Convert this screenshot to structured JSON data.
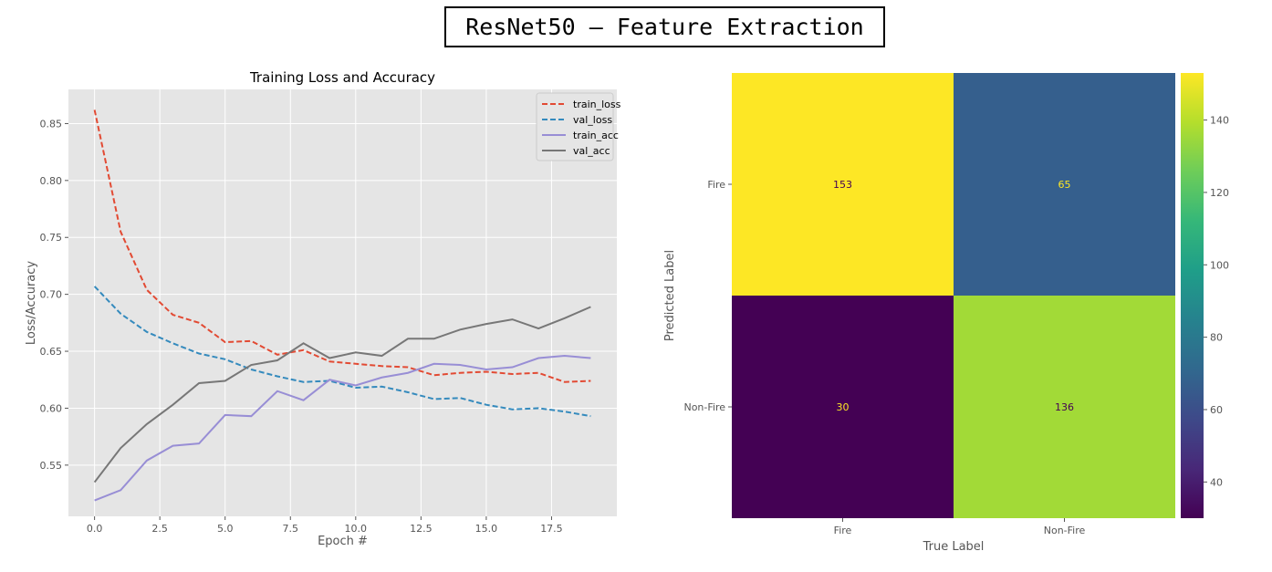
{
  "banner": "ResNet50 – Feature Extraction",
  "chart_data": [
    {
      "type": "line",
      "title": "Training Loss and Accuracy",
      "xlabel": "Epoch #",
      "ylabel": "Loss/Accuracy",
      "xlim": [
        -1,
        20
      ],
      "ylim": [
        0.505,
        0.88
      ],
      "x_ticks": [
        "0.0",
        "2.5",
        "5.0",
        "7.5",
        "10.0",
        "12.5",
        "15.0",
        "17.5"
      ],
      "y_ticks": [
        "0.55",
        "0.60",
        "0.65",
        "0.70",
        "0.75",
        "0.80",
        "0.85"
      ],
      "grid": true,
      "legend_position": "top-right",
      "x": [
        0,
        1,
        2,
        3,
        4,
        5,
        6,
        7,
        8,
        9,
        10,
        11,
        12,
        13,
        14,
        15,
        16,
        17,
        18,
        19
      ],
      "series": [
        {
          "name": "train_loss",
          "color": "#E24A33",
          "dashed": true,
          "values": [
            0.862,
            0.755,
            0.704,
            0.682,
            0.675,
            0.658,
            0.659,
            0.647,
            0.651,
            0.641,
            0.639,
            0.637,
            0.636,
            0.629,
            0.631,
            0.632,
            0.63,
            0.631,
            0.623,
            0.624
          ]
        },
        {
          "name": "val_loss",
          "color": "#348ABD",
          "dashed": true,
          "values": [
            0.707,
            0.683,
            0.667,
            0.657,
            0.648,
            0.643,
            0.634,
            0.628,
            0.623,
            0.624,
            0.618,
            0.619,
            0.614,
            0.608,
            0.609,
            0.603,
            0.599,
            0.6,
            0.597,
            0.593
          ]
        },
        {
          "name": "train_acc",
          "color": "#988ED5",
          "dashed": false,
          "values": [
            0.519,
            0.528,
            0.554,
            0.567,
            0.569,
            0.594,
            0.593,
            0.615,
            0.607,
            0.625,
            0.62,
            0.627,
            0.631,
            0.639,
            0.638,
            0.634,
            0.636,
            0.644,
            0.646,
            0.644
          ]
        },
        {
          "name": "val_acc",
          "color": "#777777",
          "dashed": false,
          "values": [
            0.535,
            0.565,
            0.586,
            0.603,
            0.622,
            0.624,
            0.638,
            0.642,
            0.657,
            0.644,
            0.649,
            0.646,
            0.661,
            0.661,
            0.669,
            0.674,
            0.678,
            0.67,
            0.679,
            0.689
          ]
        }
      ]
    },
    {
      "type": "heatmap",
      "xlabel": "True Label",
      "ylabel": "Predicted Label",
      "x_categories": [
        "Fire",
        "Non-Fire"
      ],
      "y_categories": [
        "Fire",
        "Non-Fire"
      ],
      "values": [
        [
          153,
          65
        ],
        [
          30,
          136
        ]
      ],
      "colormap": "viridis",
      "colorbar_range": [
        30,
        153
      ],
      "colorbar_ticks": [
        "140",
        "120",
        "100",
        "80",
        "60",
        "40"
      ],
      "cell_colors": [
        [
          "#FDE725",
          "#355F8D"
        ],
        [
          "#440154",
          "#A2DA37"
        ]
      ],
      "text_colors": [
        [
          "#440154",
          "#FDE725"
        ],
        [
          "#FDE725",
          "#440154"
        ]
      ]
    }
  ]
}
